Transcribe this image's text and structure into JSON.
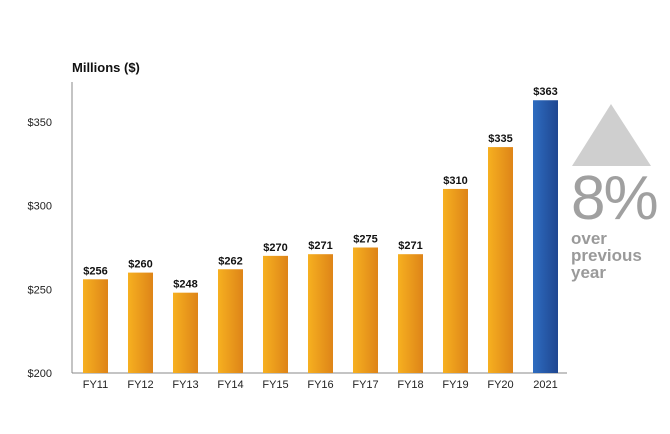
{
  "chart_data": {
    "type": "bar",
    "ylabel": "Millions ($)",
    "categories": [
      "FY11",
      "FY12",
      "FY13",
      "FY14",
      "FY15",
      "FY16",
      "FY17",
      "FY18",
      "FY19",
      "FY20",
      "2021"
    ],
    "values": [
      256,
      260,
      248,
      262,
      270,
      271,
      275,
      271,
      310,
      335,
      363
    ],
    "data_labels": [
      "$256",
      "$260",
      "$248",
      "$262",
      "$270",
      "$271",
      "$275",
      "$271",
      "$310",
      "$335",
      "$363"
    ],
    "ylim": [
      200,
      375
    ],
    "yticks": [
      200,
      250,
      300,
      350
    ],
    "ytick_labels": [
      "$200",
      "$250",
      "$300",
      "$350"
    ],
    "grid": false,
    "colors": {
      "default": "#f0a020",
      "highlight": "#2a5aa8",
      "highlight_category": "2021"
    }
  },
  "callout": {
    "icon": "up-triangle-icon",
    "color": "#cfcfcf",
    "percent": "8%",
    "text": "over previous year"
  }
}
